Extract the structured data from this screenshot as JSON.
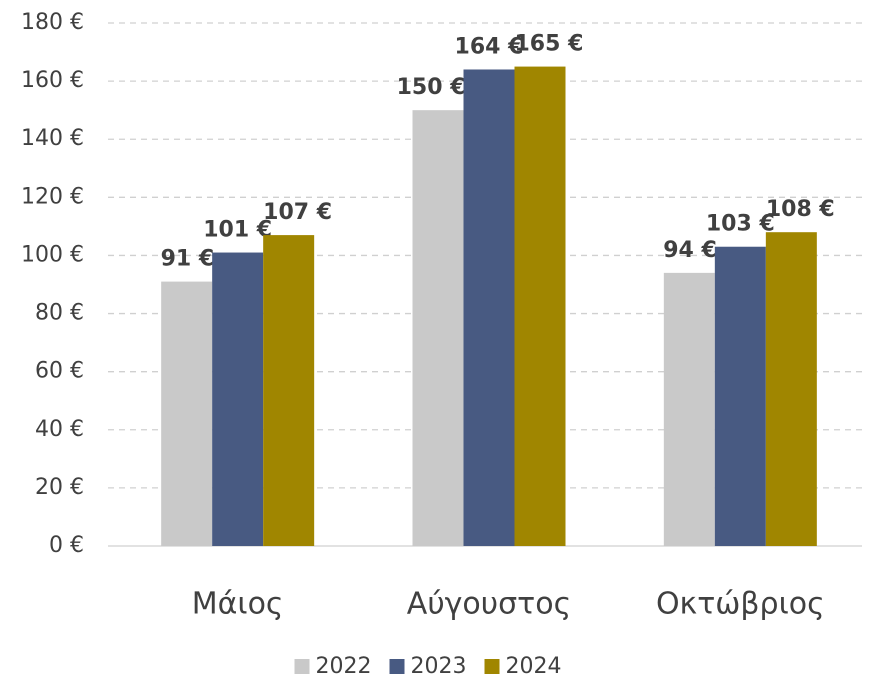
{
  "chart_data": {
    "type": "bar",
    "categories": [
      "Μάιος",
      "Αύγουστος",
      "Οκτώβριος"
    ],
    "series": [
      {
        "name": "2022",
        "color": "#c9c9c9",
        "values": [
          91,
          150,
          94
        ],
        "value_labels": [
          "91 €",
          "150 €",
          "94 €"
        ]
      },
      {
        "name": "2023",
        "color": "#485a82",
        "values": [
          101,
          164,
          103
        ],
        "value_labels": [
          "101 €",
          "164 €",
          "103 €"
        ]
      },
      {
        "name": "2024",
        "color": "#a08600",
        "values": [
          107,
          165,
          108
        ],
        "value_labels": [
          "107 €",
          "165 €",
          "108 €"
        ]
      }
    ],
    "ylim": [
      0,
      180
    ],
    "yticks": [
      {
        "value": 0,
        "label": "0 €"
      },
      {
        "value": 20,
        "label": "20 €"
      },
      {
        "value": 40,
        "label": "40 €"
      },
      {
        "value": 60,
        "label": "60 €"
      },
      {
        "value": 80,
        "label": "80 €"
      },
      {
        "value": 100,
        "label": "100 €"
      },
      {
        "value": 120,
        "label": "120 €"
      },
      {
        "value": 140,
        "label": "140 €"
      },
      {
        "value": 160,
        "label": "160 €"
      },
      {
        "value": 180,
        "label": "180 €"
      }
    ],
    "grid": true,
    "legend": "bottom"
  }
}
